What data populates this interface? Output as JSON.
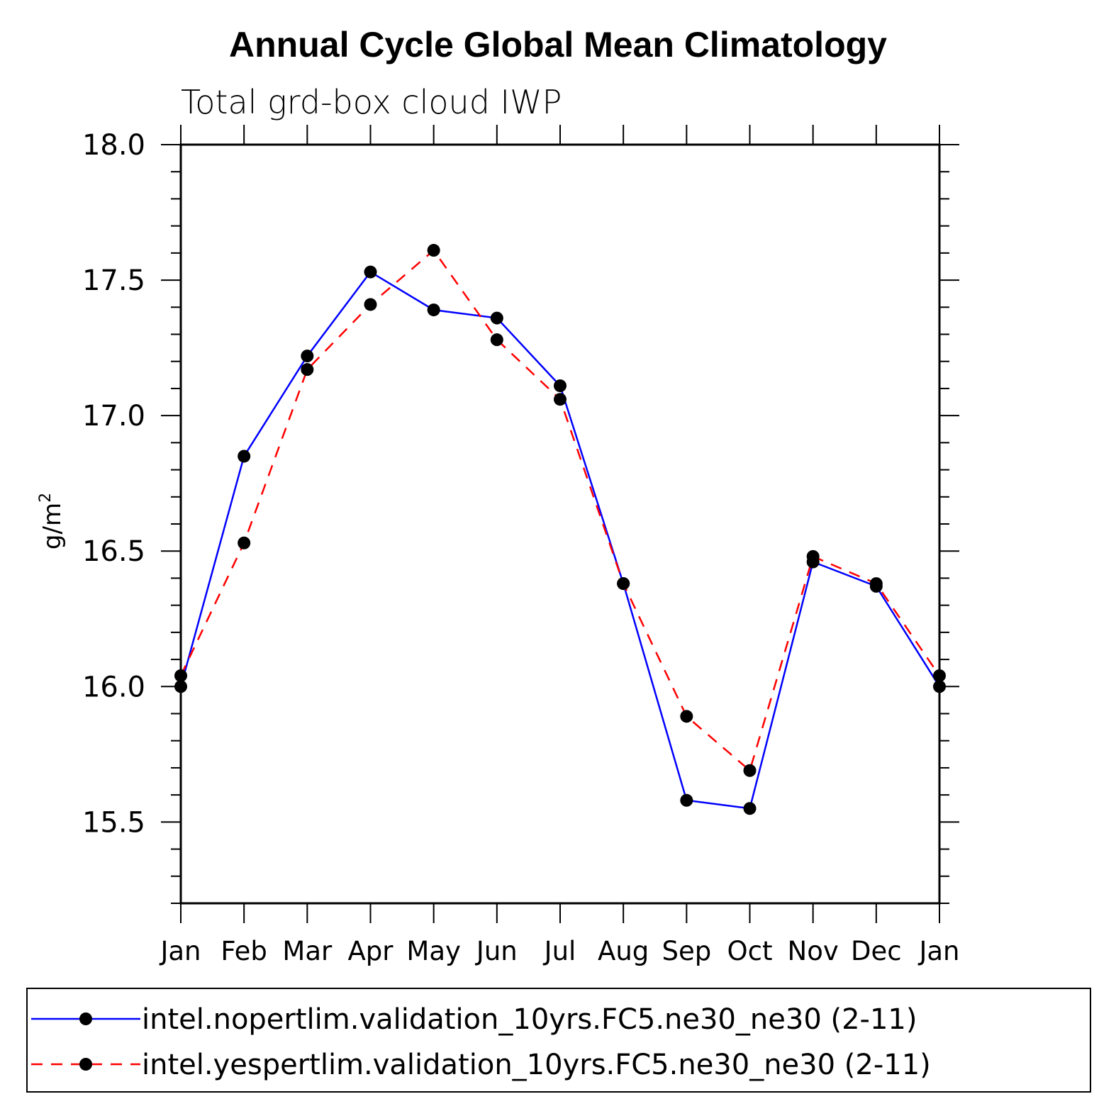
{
  "chart_data": {
    "type": "line",
    "title": "Annual Cycle Global Mean Climatology",
    "subtitle": "Total grd-box cloud IWP",
    "xlabel": "",
    "ylabel": "g/m",
    "ylabel_superscript": "2",
    "categories": [
      "Jan",
      "Feb",
      "Mar",
      "Apr",
      "May",
      "Jun",
      "Jul",
      "Aug",
      "Sep",
      "Oct",
      "Nov",
      "Dec",
      "Jan"
    ],
    "ylim": [
      15.2,
      18.0
    ],
    "yticks": [
      15.5,
      16.0,
      16.5,
      17.0,
      17.5,
      18.0
    ],
    "ytick_labels": [
      "15.5",
      "16.0",
      "16.5",
      "17.0",
      "17.5",
      "18.0"
    ],
    "y_minor_step": 0.1,
    "grid": false,
    "legend_position": "bottom",
    "series": [
      {
        "name": "intel.nopertlim.validation_10yrs.FC5.ne30_ne30 (2-11)",
        "color": "#0000ff",
        "dash": "solid",
        "values": [
          16.0,
          16.85,
          17.22,
          17.53,
          17.39,
          17.36,
          17.11,
          16.38,
          15.58,
          15.55,
          16.46,
          16.37,
          16.0
        ]
      },
      {
        "name": "intel.yespertlim.validation_10yrs.FC5.ne30_ne30 (2-11)",
        "color": "#ff0000",
        "dash": "dashed",
        "values": [
          16.04,
          16.53,
          17.17,
          17.41,
          17.61,
          17.28,
          17.06,
          16.38,
          15.89,
          15.69,
          16.48,
          16.38,
          16.04
        ]
      }
    ]
  }
}
